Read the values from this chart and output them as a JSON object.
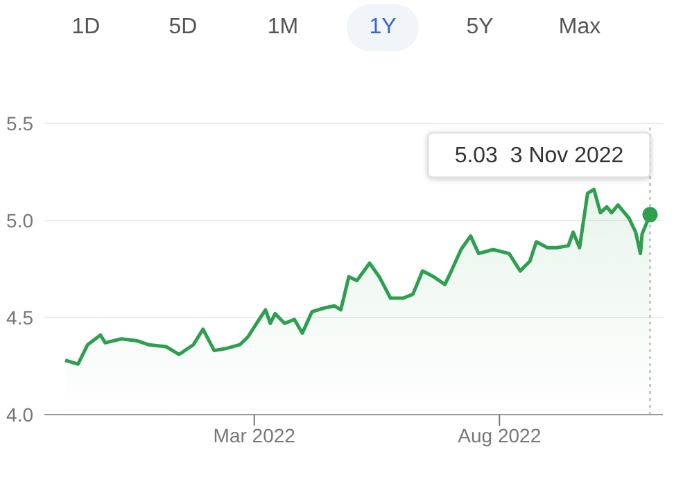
{
  "chart_data": {
    "type": "area",
    "annotations": [
      "1D",
      "5D",
      "1M",
      "1Y",
      "5Y",
      "Max",
      {
        "text": "5.03  3 Nov 2022",
        "x": "2022-11-03",
        "y": 5.03
      }
    ],
    "x": [
      "2021-11-03",
      "2021-11-11",
      "2021-11-17",
      "2021-11-25",
      "2021-11-28",
      "2021-12-08",
      "2021-12-18",
      "2021-12-25",
      "2022-01-05",
      "2022-01-13",
      "2022-01-22",
      "2022-01-28",
      "2022-02-04",
      "2022-02-11",
      "2022-02-20",
      "2022-02-25",
      "2022-03-04",
      "2022-03-08",
      "2022-03-11",
      "2022-03-14",
      "2022-03-20",
      "2022-03-26",
      "2022-03-31",
      "2022-04-06",
      "2022-04-14",
      "2022-04-20",
      "2022-04-24",
      "2022-04-29",
      "2022-05-04",
      "2022-05-12",
      "2022-05-18",
      "2022-05-25",
      "2022-06-02",
      "2022-06-08",
      "2022-06-14",
      "2022-06-21",
      "2022-06-28",
      "2022-07-02",
      "2022-07-08",
      "2022-07-14",
      "2022-07-19",
      "2022-07-28",
      "2022-08-07",
      "2022-08-14",
      "2022-08-20",
      "2022-08-24",
      "2022-08-31",
      "2022-09-06",
      "2022-09-13",
      "2022-09-16",
      "2022-09-20",
      "2022-09-25",
      "2022-09-29",
      "2022-10-03",
      "2022-10-07",
      "2022-10-10",
      "2022-10-14",
      "2022-10-21",
      "2022-10-25",
      "2022-10-28",
      "2022-10-29",
      "2022-11-03"
    ],
    "series": [
      {
        "color": "#2e9e4f",
        "values": [
          4.28,
          4.26,
          4.36,
          4.41,
          4.37,
          4.39,
          4.38,
          4.36,
          4.35,
          4.31,
          4.36,
          4.44,
          4.33,
          4.34,
          4.36,
          4.4,
          4.49,
          4.54,
          4.47,
          4.52,
          4.47,
          4.49,
          4.42,
          4.53,
          4.55,
          4.56,
          4.54,
          4.71,
          4.69,
          4.78,
          4.71,
          4.6,
          4.6,
          4.62,
          4.74,
          4.71,
          4.67,
          4.74,
          4.85,
          4.92,
          4.83,
          4.85,
          4.83,
          4.74,
          4.79,
          4.89,
          4.86,
          4.86,
          4.87,
          4.94,
          4.86,
          5.14,
          5.16,
          5.04,
          5.07,
          5.04,
          5.08,
          5.01,
          4.94,
          4.83,
          4.93,
          5.03
        ]
      }
    ],
    "xlim": [
      "2021-10-21",
      "2022-11-11"
    ],
    "xticks": [
      {
        "value": "2022-03-01",
        "label": "Mar 2022"
      },
      {
        "value": "2022-08-01",
        "label": "Aug 2022"
      }
    ],
    "ylim": [
      4.0,
      5.5
    ],
    "yticks": [
      {
        "value": 4,
        "label": "4.0"
      },
      4.5,
      {
        "value": 5,
        "label": "5.0"
      },
      5.5
    ],
    "ref_lines": [
      {
        "axis": "x",
        "value": "2022-11-03",
        "label": null,
        "color": "#aaaaaa",
        "line_style": "dotted"
      }
    ],
    "grid": "y",
    "marker": "none",
    "line_style": "solid"
  }
}
